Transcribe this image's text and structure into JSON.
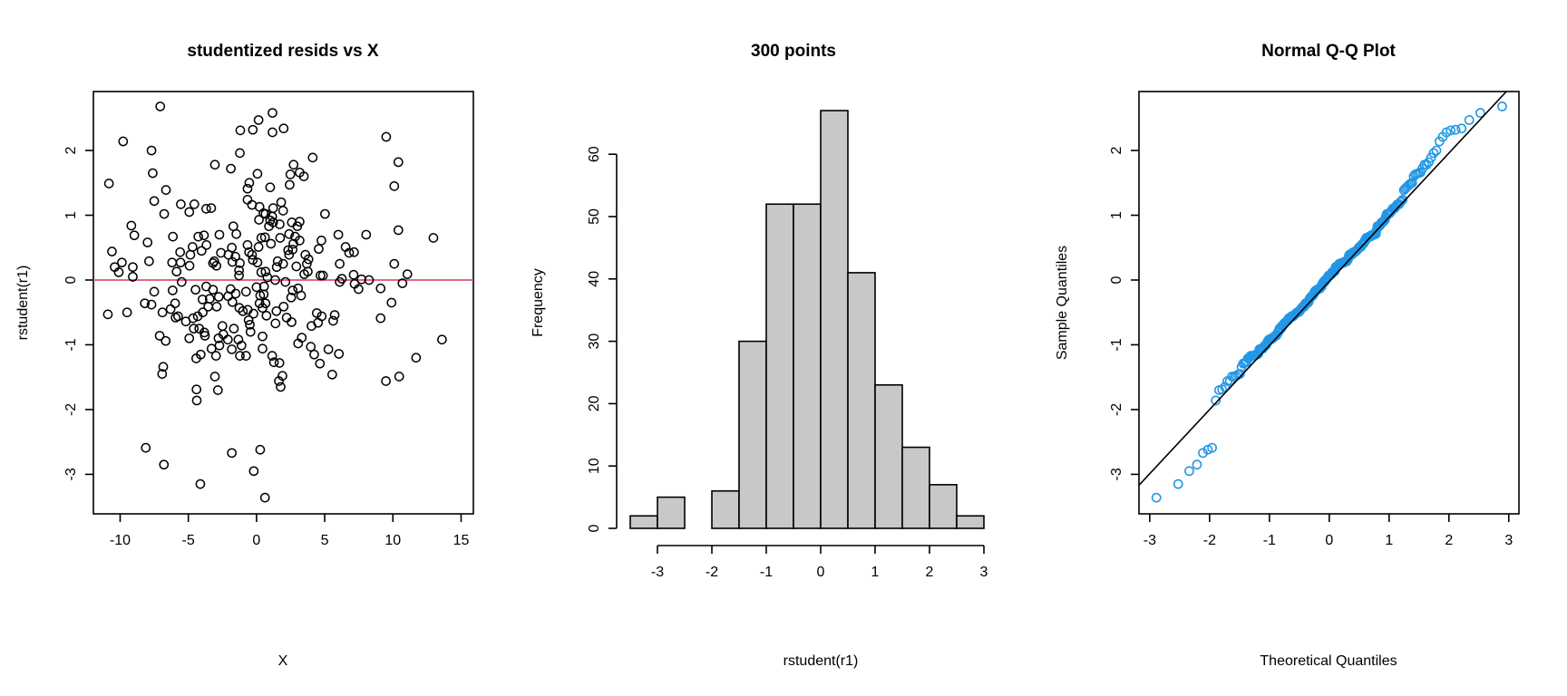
{
  "chart_data": [
    {
      "type": "scatter",
      "title": "studentized resids vs X",
      "xlabel": "X",
      "ylabel": "rstudent(r1)",
      "xlim": [
        -11.96,
        15.9
      ],
      "ylim": [
        -3.61,
        2.91
      ],
      "xticks": [
        -10,
        -5,
        0,
        5,
        10,
        15
      ],
      "yticks": [
        -3,
        -2,
        -1,
        0,
        1,
        2
      ],
      "hline": {
        "y": 0,
        "color": "#DF536B"
      },
      "point_color": "#000000",
      "points": [
        [
          -7.06,
          2.68
        ],
        [
          -9.78,
          2.14
        ],
        [
          -7.7,
          2.0
        ],
        [
          -10.82,
          1.49
        ],
        [
          -7.61,
          1.65
        ],
        [
          -6.64,
          1.39
        ],
        [
          -7.5,
          1.22
        ],
        [
          -6.77,
          1.02
        ],
        [
          -9.18,
          0.84
        ],
        [
          -8.96,
          0.69
        ],
        [
          -10.6,
          0.44
        ],
        [
          -7.99,
          0.58
        ],
        [
          -7.88,
          0.29
        ],
        [
          -10.4,
          0.2
        ],
        [
          -9.87,
          0.27
        ],
        [
          -10.1,
          0.12
        ],
        [
          -9.07,
          0.2
        ],
        [
          -9.07,
          0.05
        ],
        [
          -10.9,
          -0.53
        ],
        [
          -9.49,
          -0.5
        ],
        [
          -8.19,
          -0.36
        ],
        [
          -7.5,
          -0.18
        ],
        [
          -7.7,
          -0.38
        ],
        [
          -6.9,
          -0.5
        ],
        [
          -7.1,
          -0.86
        ],
        [
          -6.66,
          -0.94
        ],
        [
          -6.84,
          -1.34
        ],
        [
          -6.92,
          -1.45
        ],
        [
          -8.12,
          -2.59
        ],
        [
          -6.79,
          -2.85
        ],
        [
          -4.12,
          -3.15
        ],
        [
          -4.4,
          -1.69
        ],
        [
          -4.38,
          -1.86
        ],
        [
          -3.05,
          -1.49
        ],
        [
          -2.83,
          -1.7
        ],
        [
          -1.81,
          -2.67
        ],
        [
          0.27,
          -2.62
        ],
        [
          -0.2,
          -2.95
        ],
        [
          0.62,
          -3.36
        ],
        [
          -5.55,
          1.17
        ],
        [
          -4.93,
          1.05
        ],
        [
          -4.56,
          1.17
        ],
        [
          -3.69,
          1.1
        ],
        [
          -3.32,
          1.11
        ],
        [
          -3.05,
          1.78
        ],
        [
          -1.88,
          1.72
        ],
        [
          -1.22,
          1.96
        ],
        [
          -1.19,
          2.31
        ],
        [
          -0.27,
          2.32
        ],
        [
          0.15,
          2.47
        ],
        [
          1.17,
          2.58
        ],
        [
          1.17,
          2.28
        ],
        [
          1.99,
          2.34
        ],
        [
          0.07,
          1.64
        ],
        [
          -0.53,
          1.5
        ],
        [
          -0.66,
          1.41
        ],
        [
          1.0,
          1.43
        ],
        [
          2.72,
          1.78
        ],
        [
          2.43,
          1.47
        ],
        [
          2.48,
          1.63
        ],
        [
          3.16,
          1.66
        ],
        [
          3.47,
          1.6
        ],
        [
          4.12,
          1.89
        ],
        [
          5.02,
          1.02
        ],
        [
          9.51,
          2.21
        ],
        [
          10.4,
          1.82
        ],
        [
          10.1,
          1.45
        ],
        [
          10.4,
          0.77
        ],
        [
          8.04,
          0.7
        ],
        [
          6.0,
          0.7
        ],
        [
          12.97,
          0.65
        ],
        [
          10.1,
          0.25
        ],
        [
          11.06,
          0.09
        ],
        [
          10.7,
          -0.05
        ],
        [
          9.9,
          -0.35
        ],
        [
          9.1,
          -0.13
        ],
        [
          9.1,
          -0.59
        ],
        [
          13.6,
          -0.92
        ],
        [
          11.7,
          -1.2
        ],
        [
          10.46,
          -1.49
        ],
        [
          9.49,
          -1.56
        ],
        [
          7.12,
          0.08
        ],
        [
          7.7,
          0.01
        ],
        [
          8.25,
          0.0
        ],
        [
          7.48,
          -0.14
        ],
        [
          7.19,
          -0.06
        ],
        [
          6.53,
          0.51
        ],
        [
          7.15,
          0.43
        ],
        [
          6.79,
          0.42
        ],
        [
          6.1,
          0.25
        ],
        [
          6.26,
          0.02
        ],
        [
          6.1,
          -0.03
        ],
        [
          4.76,
          0.61
        ],
        [
          4.56,
          0.48
        ],
        [
          4.69,
          0.07
        ],
        [
          5.73,
          -0.54
        ],
        [
          5.62,
          -0.63
        ],
        [
          5.27,
          -1.07
        ],
        [
          6.04,
          -1.14
        ],
        [
          5.55,
          -1.46
        ],
        [
          4.42,
          -0.51
        ],
        [
          4.78,
          -0.56
        ],
        [
          4.51,
          -0.66
        ],
        [
          3.98,
          -1.03
        ],
        [
          4.23,
          -1.15
        ],
        [
          4.65,
          -1.29
        ],
        [
          3.32,
          -0.89
        ],
        [
          3.05,
          -0.98
        ],
        [
          4.03,
          -0.71
        ],
        [
          3.27,
          -0.24
        ],
        [
          3.05,
          -0.13
        ],
        [
          2.12,
          -0.03
        ],
        [
          2.65,
          -0.16
        ],
        [
          2.54,
          -0.27
        ],
        [
          1.99,
          -0.41
        ],
        [
          2.21,
          -0.58
        ],
        [
          2.57,
          -0.65
        ],
        [
          1.46,
          -0.48
        ],
        [
          1.39,
          -0.67
        ],
        [
          1.15,
          -1.17
        ],
        [
          1.28,
          -1.27
        ],
        [
          1.68,
          -1.28
        ],
        [
          1.9,
          -1.48
        ],
        [
          1.64,
          -1.56
        ],
        [
          1.77,
          -1.65
        ],
        [
          0.44,
          -0.87
        ],
        [
          0.44,
          -1.06
        ],
        [
          0.73,
          -0.55
        ],
        [
          0.44,
          -0.43
        ],
        [
          0.66,
          -0.36
        ],
        [
          0.53,
          -0.22
        ],
        [
          0.55,
          -0.1
        ],
        [
          0.0,
          -0.11
        ],
        [
          0.27,
          -0.24
        ],
        [
          0.22,
          -0.36
        ],
        [
          -0.22,
          -0.52
        ],
        [
          -0.64,
          -0.46
        ],
        [
          -0.58,
          -0.62
        ],
        [
          -0.49,
          -0.69
        ],
        [
          -0.44,
          -0.8
        ],
        [
          -0.77,
          -0.18
        ],
        [
          -1.0,
          -0.48
        ],
        [
          -1.26,
          -0.43
        ],
        [
          -1.66,
          -0.75
        ],
        [
          -1.33,
          -0.92
        ],
        [
          -1.1,
          -1.01
        ],
        [
          -1.22,
          -1.17
        ],
        [
          -0.77,
          -1.17
        ],
        [
          -1.81,
          -1.07
        ],
        [
          -2.1,
          -0.92
        ],
        [
          -2.5,
          -0.71
        ],
        [
          -2.79,
          -0.9
        ],
        [
          -2.97,
          -1.17
        ],
        [
          -3.3,
          -1.06
        ],
        [
          -2.43,
          -0.84
        ],
        [
          -2.72,
          -1.01
        ],
        [
          -2.08,
          -0.25
        ],
        [
          -1.9,
          -0.14
        ],
        [
          -1.77,
          -0.34
        ],
        [
          -1.53,
          -0.21
        ],
        [
          -2.77,
          -0.26
        ],
        [
          -2.92,
          -0.41
        ],
        [
          -3.19,
          -0.15
        ],
        [
          -3.69,
          -0.1
        ],
        [
          -3.43,
          -0.29
        ],
        [
          -3.96,
          -0.3
        ],
        [
          -3.54,
          -0.41
        ],
        [
          -3.94,
          -0.5
        ],
        [
          -4.31,
          -0.56
        ],
        [
          -4.65,
          -0.59
        ],
        [
          -5.18,
          -0.64
        ],
        [
          -4.47,
          -0.15
        ],
        [
          -4.2,
          -0.75
        ],
        [
          -4.6,
          -0.75
        ],
        [
          -3.83,
          -0.81
        ],
        [
          -3.78,
          -0.86
        ],
        [
          -4.93,
          -0.9
        ],
        [
          -4.09,
          -1.15
        ],
        [
          -4.42,
          -1.21
        ],
        [
          -5.97,
          -0.36
        ],
        [
          -5.93,
          -0.58
        ],
        [
          -5.75,
          -0.56
        ],
        [
          -6.3,
          -0.45
        ],
        [
          -6.15,
          -0.16
        ],
        [
          -5.49,
          -0.03
        ],
        [
          -5.86,
          0.13
        ],
        [
          -6.19,
          0.27
        ],
        [
          -5.57,
          0.27
        ],
        [
          -4.91,
          0.22
        ],
        [
          -6.13,
          0.67
        ],
        [
          -5.6,
          0.43
        ],
        [
          -4.85,
          0.39
        ],
        [
          -4.69,
          0.51
        ],
        [
          -4.03,
          0.45
        ],
        [
          -3.67,
          0.54
        ],
        [
          -4.27,
          0.67
        ],
        [
          -3.85,
          0.69
        ],
        [
          -2.72,
          0.7
        ],
        [
          -1.7,
          0.83
        ],
        [
          -1.48,
          0.71
        ],
        [
          -1.81,
          0.5
        ],
        [
          -2.61,
          0.42
        ],
        [
          -2.06,
          0.39
        ],
        [
          -1.55,
          0.36
        ],
        [
          -1.77,
          0.28
        ],
        [
          -3.1,
          0.29
        ],
        [
          -2.94,
          0.22
        ],
        [
          -3.19,
          0.26
        ],
        [
          -1.22,
          0.26
        ],
        [
          -1.28,
          0.15
        ],
        [
          -1.28,
          0.07
        ],
        [
          -0.66,
          0.54
        ],
        [
          -0.55,
          0.43
        ],
        [
          -0.33,
          0.39
        ],
        [
          -0.27,
          0.31
        ],
        [
          0.07,
          0.27
        ],
        [
          0.15,
          0.51
        ],
        [
          0.35,
          0.65
        ],
        [
          0.62,
          0.66
        ],
        [
          1.06,
          0.56
        ],
        [
          1.73,
          0.65
        ],
        [
          -0.66,
          1.24
        ],
        [
          -0.33,
          1.16
        ],
        [
          0.22,
          1.13
        ],
        [
          0.51,
          1.03
        ],
        [
          0.66,
          1.02
        ],
        [
          0.18,
          0.93
        ],
        [
          1.0,
          0.92
        ],
        [
          1.22,
          1.11
        ],
        [
          1.81,
          1.2
        ],
        [
          1.95,
          1.07
        ],
        [
          1.15,
          0.98
        ],
        [
          0.91,
          0.83
        ],
        [
          1.22,
          0.89
        ],
        [
          1.7,
          0.86
        ],
        [
          2.39,
          0.71
        ],
        [
          2.59,
          0.89
        ],
        [
          2.99,
          0.83
        ],
        [
          3.16,
          0.9
        ],
        [
          2.83,
          0.67
        ],
        [
          2.7,
          0.56
        ],
        [
          3.16,
          0.61
        ],
        [
          2.32,
          0.46
        ],
        [
          2.65,
          0.47
        ],
        [
          2.39,
          0.39
        ],
        [
          3.58,
          0.39
        ],
        [
          3.81,
          0.32
        ],
        [
          3.69,
          0.25
        ],
        [
          2.92,
          0.21
        ],
        [
          1.55,
          0.29
        ],
        [
          1.95,
          0.25
        ],
        [
          1.48,
          0.2
        ],
        [
          0.35,
          0.12
        ],
        [
          0.66,
          0.13
        ],
        [
          0.8,
          0.04
        ],
        [
          1.37,
          0.0
        ],
        [
          3.5,
          0.09
        ],
        [
          3.76,
          0.13
        ],
        [
          4.87,
          0.07
        ]
      ]
    },
    {
      "type": "bar",
      "subtype": "histogram",
      "title": "300 points",
      "xlabel": "rstudent(r1)",
      "ylabel": "Frequency",
      "bin_edges": [
        -3.5,
        -3,
        -2.5,
        -2,
        -1.5,
        -1,
        -0.5,
        0,
        0.5,
        1,
        1.5,
        2,
        2.5,
        3
      ],
      "values": [
        2,
        5,
        0,
        6,
        30,
        52,
        52,
        67,
        41,
        23,
        13,
        7,
        2
      ],
      "xticks": [
        -3,
        -2,
        -1,
        0,
        1,
        2,
        3
      ],
      "yticks": [
        0,
        10,
        20,
        30,
        40,
        50,
        60
      ],
      "ylim": [
        0,
        67
      ],
      "bar_color": "#C8C8C8"
    },
    {
      "type": "scatter",
      "subtype": "qq",
      "title": "Normal Q-Q Plot",
      "xlabel": "Theoretical Quantiles",
      "ylabel": "Sample Quantiles",
      "xlim": [
        -3.18,
        3.17
      ],
      "ylim": [
        -3.61,
        2.91
      ],
      "xticks": [
        -3,
        -2,
        -1,
        0,
        1,
        2,
        3
      ],
      "yticks": [
        -3,
        -2,
        -1,
        0,
        1,
        2
      ],
      "sample": "sorted rstudent(r1) values from panel 1",
      "qqline": {
        "intercept": -0.02,
        "slope": 0.99
      },
      "point_color": "#2297E6"
    }
  ]
}
